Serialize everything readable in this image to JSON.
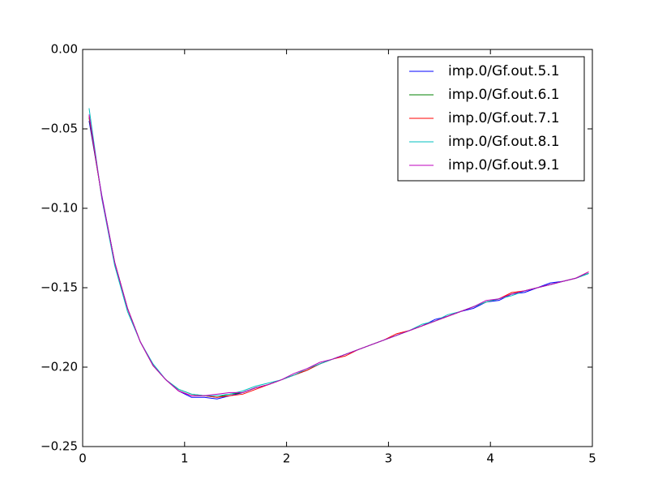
{
  "chart_data": {
    "type": "line",
    "x": [
      0.063,
      0.188,
      0.314,
      0.44,
      0.565,
      0.691,
      0.817,
      0.942,
      1.068,
      1.194,
      1.319,
      1.445,
      1.571,
      1.696,
      1.822,
      1.948,
      2.073,
      2.199,
      2.325,
      2.45,
      2.576,
      2.702,
      2.827,
      2.953,
      3.079,
      3.204,
      3.33,
      3.456,
      3.581,
      3.707,
      3.833,
      3.958,
      4.084,
      4.21,
      4.335,
      4.461,
      4.587,
      4.712,
      4.838,
      4.964
    ],
    "series": [
      {
        "name": "imp.0/Gf.out.5.1",
        "color": "#0000ff",
        "values": [
          -0.045,
          -0.092,
          -0.134,
          -0.163,
          -0.184,
          -0.199,
          -0.208,
          -0.215,
          -0.219,
          -0.219,
          -0.22,
          -0.218,
          -0.216,
          -0.213,
          -0.211,
          -0.208,
          -0.205,
          -0.202,
          -0.198,
          -0.195,
          -0.192,
          -0.189,
          -0.186,
          -0.183,
          -0.18,
          -0.177,
          -0.174,
          -0.17,
          -0.168,
          -0.165,
          -0.163,
          -0.159,
          -0.158,
          -0.154,
          -0.153,
          -0.15,
          -0.147,
          -0.146,
          -0.144,
          -0.141
        ]
      },
      {
        "name": "imp.0/Gf.out.6.1",
        "color": "#008000",
        "values": [
          -0.043,
          -0.093,
          -0.134,
          -0.163,
          -0.184,
          -0.199,
          -0.208,
          -0.214,
          -0.217,
          -0.218,
          -0.219,
          -0.217,
          -0.216,
          -0.213,
          -0.211,
          -0.208,
          -0.205,
          -0.202,
          -0.198,
          -0.195,
          -0.192,
          -0.189,
          -0.186,
          -0.183,
          -0.18,
          -0.177,
          -0.174,
          -0.171,
          -0.168,
          -0.165,
          -0.162,
          -0.159,
          -0.157,
          -0.154,
          -0.152,
          -0.15,
          -0.148,
          -0.146,
          -0.144,
          -0.141
        ]
      },
      {
        "name": "imp.0/Gf.out.7.1",
        "color": "#ff0000",
        "values": [
          -0.042,
          -0.093,
          -0.134,
          -0.163,
          -0.184,
          -0.199,
          -0.208,
          -0.215,
          -0.218,
          -0.218,
          -0.219,
          -0.218,
          -0.217,
          -0.214,
          -0.211,
          -0.208,
          -0.205,
          -0.202,
          -0.198,
          -0.195,
          -0.193,
          -0.189,
          -0.186,
          -0.183,
          -0.179,
          -0.177,
          -0.174,
          -0.171,
          -0.168,
          -0.165,
          -0.162,
          -0.159,
          -0.157,
          -0.153,
          -0.152,
          -0.15,
          -0.148,
          -0.146,
          -0.144,
          -0.14
        ]
      },
      {
        "name": "imp.0/Gf.out.8.1",
        "color": "#00bfbf",
        "values": [
          -0.037,
          -0.094,
          -0.136,
          -0.165,
          -0.184,
          -0.198,
          -0.208,
          -0.214,
          -0.217,
          -0.218,
          -0.218,
          -0.217,
          -0.215,
          -0.212,
          -0.21,
          -0.208,
          -0.205,
          -0.201,
          -0.198,
          -0.195,
          -0.192,
          -0.189,
          -0.186,
          -0.183,
          -0.18,
          -0.177,
          -0.173,
          -0.171,
          -0.167,
          -0.165,
          -0.162,
          -0.159,
          -0.157,
          -0.155,
          -0.152,
          -0.15,
          -0.148,
          -0.146,
          -0.144,
          -0.141
        ]
      },
      {
        "name": "imp.0/Gf.out.9.1",
        "color": "#bf00bf",
        "values": [
          -0.041,
          -0.093,
          -0.134,
          -0.163,
          -0.184,
          -0.199,
          -0.208,
          -0.215,
          -0.218,
          -0.218,
          -0.217,
          -0.216,
          -0.216,
          -0.213,
          -0.211,
          -0.208,
          -0.204,
          -0.201,
          -0.197,
          -0.195,
          -0.192,
          -0.189,
          -0.186,
          -0.183,
          -0.18,
          -0.177,
          -0.174,
          -0.171,
          -0.168,
          -0.165,
          -0.162,
          -0.158,
          -0.157,
          -0.154,
          -0.152,
          -0.15,
          -0.148,
          -0.146,
          -0.144,
          -0.14
        ]
      }
    ],
    "xlim": [
      0,
      5
    ],
    "ylim": [
      -0.25,
      0
    ],
    "xticks": [
      0,
      1,
      2,
      3,
      4,
      5
    ],
    "yticks": [
      {
        "value": -0.25,
        "label": "−0.25"
      },
      {
        "value": -0.2,
        "label": "−0.20"
      },
      {
        "value": -0.15,
        "label": "−0.15"
      },
      {
        "value": -0.1,
        "label": "−0.10"
      },
      {
        "value": -0.05,
        "label": "−0.05"
      },
      {
        "value": 0,
        "label": "0.00"
      }
    ],
    "grid": false,
    "legend": "upper right"
  }
}
